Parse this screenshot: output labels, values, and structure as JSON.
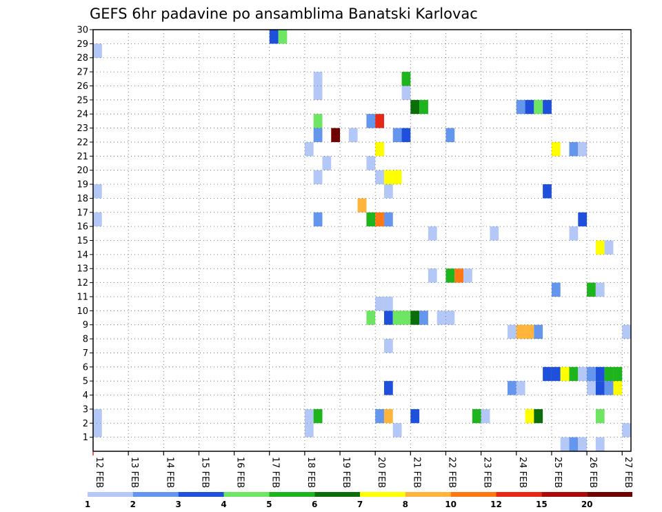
{
  "chart_data": {
    "type": "heatmap",
    "title": "GEFS 6hr padavine po ansamblima Banatski Karlovac",
    "xlabel": "",
    "ylabel": "",
    "x_tick_labels": [
      "12 FEB",
      "13 FEB",
      "14 FEB",
      "15 FEB",
      "16 FEB",
      "17 FEB",
      "18 FEB",
      "19 FEB",
      "20 FEB",
      "21 FEB",
      "22 FEB",
      "23 FEB",
      "24 FEB",
      "25 FEB",
      "26 FEB",
      "27 FEB"
    ],
    "y_tick_labels": [
      "1",
      "2",
      "3",
      "4",
      "5",
      "6",
      "7",
      "8",
      "9",
      "10",
      "11",
      "12",
      "13",
      "14",
      "15",
      "16",
      "17",
      "18",
      "19",
      "20",
      "21",
      "22",
      "23",
      "24",
      "25",
      "26",
      "27",
      "28",
      "29",
      "30"
    ],
    "xlim_days": [
      0,
      15.25
    ],
    "ylim_members": [
      0,
      30
    ],
    "grid": true,
    "legend_position": "bottom",
    "color_thresholds": [
      "1",
      "2",
      "3",
      "4",
      "5",
      "6",
      "7",
      "8",
      "10",
      "12",
      "15",
      "20"
    ],
    "level_colors": [
      "#b4c8f8",
      "#6496ee",
      "#1e50dc",
      "#6ee664",
      "#1eb41e",
      "#0a6e0a",
      "#ffff00",
      "#ffb43c",
      "#ff7814",
      "#e62814",
      "#aa0a0a",
      "#6e0000"
    ],
    "cell_width_days": 0.25,
    "cells": [
      {
        "m": 0,
        "d": 13.25,
        "l": 1
      },
      {
        "m": 0,
        "d": 13.5,
        "l": 2
      },
      {
        "m": 0,
        "d": 13.75,
        "l": 1
      },
      {
        "m": 0,
        "d": 14.25,
        "l": 1
      },
      {
        "m": 1,
        "d": 6.0,
        "l": 1
      },
      {
        "m": 1,
        "d": 8.5,
        "l": 1
      },
      {
        "m": 1,
        "d": 15.0,
        "l": 1
      },
      {
        "m": 2,
        "d": 0.0,
        "l": 1
      },
      {
        "m": 2,
        "d": 6.0,
        "l": 1
      },
      {
        "m": 2,
        "d": 6.25,
        "l": 5
      },
      {
        "m": 2,
        "d": 8.0,
        "l": 2
      },
      {
        "m": 2,
        "d": 8.25,
        "l": 8
      },
      {
        "m": 2,
        "d": 9.0,
        "l": 3
      },
      {
        "m": 2,
        "d": 10.75,
        "l": 5
      },
      {
        "m": 2,
        "d": 11.0,
        "l": 1
      },
      {
        "m": 2,
        "d": 12.25,
        "l": 7
      },
      {
        "m": 2,
        "d": 12.5,
        "l": 6
      },
      {
        "m": 2,
        "d": 14.25,
        "l": 4
      },
      {
        "m": 4,
        "d": 8.25,
        "l": 3
      },
      {
        "m": 4,
        "d": 11.75,
        "l": 2
      },
      {
        "m": 4,
        "d": 12.0,
        "l": 1
      },
      {
        "m": 4,
        "d": 14.0,
        "l": 1
      },
      {
        "m": 4,
        "d": 14.25,
        "l": 3
      },
      {
        "m": 4,
        "d": 14.5,
        "l": 2
      },
      {
        "m": 4,
        "d": 14.75,
        "l": 7
      },
      {
        "m": 5,
        "d": 12.75,
        "l": 3
      },
      {
        "m": 5,
        "d": 13.0,
        "l": 3
      },
      {
        "m": 5,
        "d": 13.25,
        "l": 7
      },
      {
        "m": 5,
        "d": 13.5,
        "l": 5
      },
      {
        "m": 5,
        "d": 13.75,
        "l": 1
      },
      {
        "m": 5,
        "d": 14.0,
        "l": 2
      },
      {
        "m": 5,
        "d": 14.25,
        "l": 3
      },
      {
        "m": 5,
        "d": 14.5,
        "l": 5
      },
      {
        "m": 5,
        "d": 14.75,
        "l": 5
      },
      {
        "m": 7,
        "d": 8.25,
        "l": 1
      },
      {
        "m": 8,
        "d": 11.75,
        "l": 1
      },
      {
        "m": 8,
        "d": 12.0,
        "l": 8
      },
      {
        "m": 8,
        "d": 12.25,
        "l": 8
      },
      {
        "m": 8,
        "d": 12.5,
        "l": 2
      },
      {
        "m": 8,
        "d": 15.0,
        "l": 1
      },
      {
        "m": 9,
        "d": 7.75,
        "l": 4
      },
      {
        "m": 9,
        "d": 8.25,
        "l": 3
      },
      {
        "m": 9,
        "d": 8.5,
        "l": 4
      },
      {
        "m": 9,
        "d": 8.75,
        "l": 4
      },
      {
        "m": 9,
        "d": 9.0,
        "l": 6
      },
      {
        "m": 9,
        "d": 9.25,
        "l": 2
      },
      {
        "m": 9,
        "d": 9.75,
        "l": 1
      },
      {
        "m": 9,
        "d": 10.0,
        "l": 1
      },
      {
        "m": 10,
        "d": 8.0,
        "l": 1
      },
      {
        "m": 10,
        "d": 8.25,
        "l": 1
      },
      {
        "m": 11,
        "d": 13.0,
        "l": 2
      },
      {
        "m": 11,
        "d": 14.0,
        "l": 5
      },
      {
        "m": 11,
        "d": 14.25,
        "l": 1
      },
      {
        "m": 12,
        "d": 9.5,
        "l": 1
      },
      {
        "m": 12,
        "d": 10.0,
        "l": 5
      },
      {
        "m": 12,
        "d": 10.25,
        "l": 9
      },
      {
        "m": 12,
        "d": 10.5,
        "l": 1
      },
      {
        "m": 14,
        "d": 14.25,
        "l": 7
      },
      {
        "m": 14,
        "d": 14.5,
        "l": 1
      },
      {
        "m": 15,
        "d": 9.5,
        "l": 1
      },
      {
        "m": 15,
        "d": 11.25,
        "l": 1
      },
      {
        "m": 15,
        "d": 13.5,
        "l": 1
      },
      {
        "m": 16,
        "d": 6.25,
        "l": 2
      },
      {
        "m": 16,
        "d": 7.75,
        "l": 5
      },
      {
        "m": 16,
        "d": 8.0,
        "l": 9
      },
      {
        "m": 16,
        "d": 8.25,
        "l": 2
      },
      {
        "m": 16,
        "d": 13.75,
        "l": 3
      },
      {
        "m": 17,
        "d": 7.5,
        "l": 8
      },
      {
        "m": 18,
        "d": 8.25,
        "l": 1
      },
      {
        "m": 18,
        "d": 12.75,
        "l": 3
      },
      {
        "m": 19,
        "d": 6.25,
        "l": 1
      },
      {
        "m": 19,
        "d": 8.0,
        "l": 1
      },
      {
        "m": 19,
        "d": 8.25,
        "l": 7
      },
      {
        "m": 19,
        "d": 8.5,
        "l": 7
      },
      {
        "m": 20,
        "d": 6.5,
        "l": 1
      },
      {
        "m": 20,
        "d": 7.75,
        "l": 1
      },
      {
        "m": 21,
        "d": 6.0,
        "l": 1
      },
      {
        "m": 21,
        "d": 8.0,
        "l": 7
      },
      {
        "m": 21,
        "d": 13.0,
        "l": 7
      },
      {
        "m": 21,
        "d": 13.5,
        "l": 2
      },
      {
        "m": 21,
        "d": 13.75,
        "l": 1
      },
      {
        "m": 22,
        "d": 6.25,
        "l": 2
      },
      {
        "m": 22,
        "d": 6.75,
        "l": 12
      },
      {
        "m": 22,
        "d": 7.25,
        "l": 1
      },
      {
        "m": 22,
        "d": 8.5,
        "l": 2
      },
      {
        "m": 22,
        "d": 8.75,
        "l": 3
      },
      {
        "m": 22,
        "d": 10.0,
        "l": 2
      },
      {
        "m": 23,
        "d": 6.25,
        "l": 4
      },
      {
        "m": 23,
        "d": 7.75,
        "l": 2
      },
      {
        "m": 23,
        "d": 8.0,
        "l": 10
      },
      {
        "m": 24,
        "d": 9.0,
        "l": 6
      },
      {
        "m": 24,
        "d": 9.25,
        "l": 5
      },
      {
        "m": 24,
        "d": 12.0,
        "l": 2
      },
      {
        "m": 24,
        "d": 12.25,
        "l": 3
      },
      {
        "m": 24,
        "d": 12.5,
        "l": 4
      },
      {
        "m": 24,
        "d": 12.75,
        "l": 3
      },
      {
        "m": 25,
        "d": 6.25,
        "l": 1
      },
      {
        "m": 25,
        "d": 8.75,
        "l": 1
      },
      {
        "m": 26,
        "d": 6.25,
        "l": 1
      },
      {
        "m": 26,
        "d": 8.75,
        "l": 5
      },
      {
        "m": 28,
        "d": 0.0,
        "l": 1
      },
      {
        "m": 29,
        "d": 5.0,
        "l": 3
      },
      {
        "m": 29,
        "d": 5.25,
        "l": 4
      },
      {
        "m": 18,
        "d": 0.0,
        "l": 1
      },
      {
        "m": 16,
        "d": 0.0,
        "l": 1
      },
      {
        "m": 1,
        "d": 0.0,
        "l": 1
      },
      {
        "m": 28,
        "d": 0.0,
        "l": 1
      }
    ]
  }
}
